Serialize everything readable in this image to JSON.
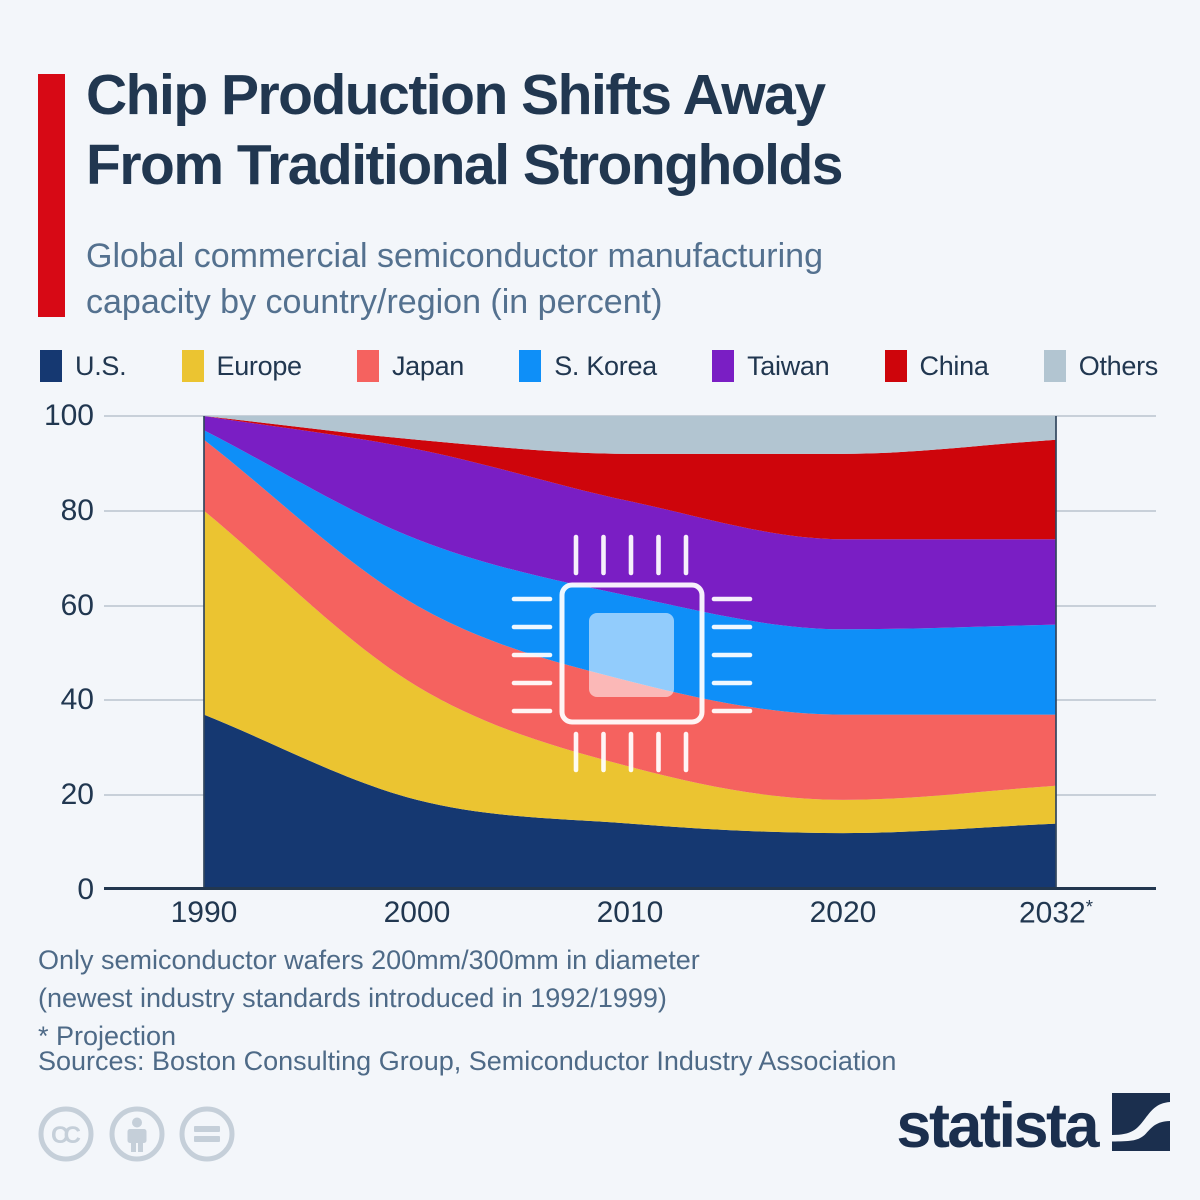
{
  "header": {
    "title_line1": "Chip Production Shifts Away",
    "title_line2": "From Traditional Strongholds",
    "subtitle_line1": "Global commercial semiconductor manufacturing",
    "subtitle_line2": "capacity by country/region (in percent)",
    "accent_color": "#d70915"
  },
  "chart_data": {
    "type": "area",
    "stacked": true,
    "x_type": "categorical",
    "categories": [
      "1990",
      "2000",
      "2010",
      "2020",
      "2032*"
    ],
    "series": [
      {
        "name": "U.S.",
        "color": "#153871",
        "values": [
          37,
          19,
          14,
          12,
          14
        ]
      },
      {
        "name": "Europe",
        "color": "#EBC431",
        "values": [
          43,
          24,
          12,
          7,
          8
        ]
      },
      {
        "name": "Japan",
        "color": "#F5625F",
        "values": [
          15,
          17,
          18,
          18,
          15
        ]
      },
      {
        "name": "S. Korea",
        "color": "#0E8FF8",
        "values": [
          2,
          14,
          18,
          18,
          19
        ]
      },
      {
        "name": "Taiwan",
        "color": "#7A1EC4",
        "values": [
          3,
          19,
          20,
          19,
          18
        ]
      },
      {
        "name": "China",
        "color": "#CE050B",
        "values": [
          0,
          2,
          10,
          18,
          21
        ]
      },
      {
        "name": "Others",
        "color": "#B2C5D1",
        "values": [
          0,
          5,
          8,
          8,
          5
        ]
      }
    ],
    "ylim": [
      0,
      100
    ],
    "yticks": [
      0,
      20,
      40,
      60,
      80,
      100
    ],
    "grid": "horizontal",
    "legend_position": "top",
    "curve": "smooth-monotone",
    "watermark_icon": "chip"
  },
  "footnotes": [
    "Only semiconductor wafers 200mm/300mm in diameter",
    "(newest industry standards introduced in 1992/1999)",
    "* Projection"
  ],
  "sources": "Sources: Boston Consulting Group, Semiconductor Industry Association",
  "branding": {
    "logo_text": "statista",
    "license_icons": [
      "cc",
      "by",
      "nd"
    ]
  }
}
